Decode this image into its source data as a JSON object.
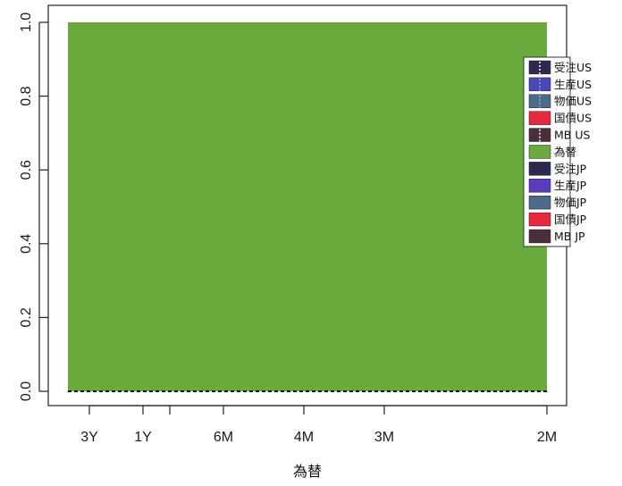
{
  "chart_data": {
    "type": "area",
    "xlabel": "為替",
    "ylabel": "",
    "title": "",
    "ylim": [
      0,
      1
    ],
    "y_ticks": [
      "0.0",
      "0.2",
      "0.4",
      "0.6",
      "0.8",
      "1.0"
    ],
    "x_tick_labels": [
      "3Y",
      "1Y",
      "6M",
      "4M",
      "3M",
      "2M"
    ],
    "stacked_proportion": true,
    "legend_position": "right",
    "series": [
      {
        "name": "受注US",
        "color": "#2e2a4f",
        "values": [
          0,
          0,
          0,
          0,
          0,
          0
        ]
      },
      {
        "name": "生産US",
        "color": "#4a48b8",
        "values": [
          0,
          0,
          0,
          0,
          0,
          0
        ]
      },
      {
        "name": "物価US",
        "color": "#4d6a8a",
        "values": [
          0,
          0,
          0,
          0,
          0,
          0
        ]
      },
      {
        "name": "国債US",
        "color": "#e8283c",
        "values": [
          0,
          0,
          0,
          0,
          0,
          0
        ]
      },
      {
        "name": "MB US",
        "color": "#4a2e3c",
        "values": [
          0,
          0,
          0,
          0,
          0,
          0
        ]
      },
      {
        "name": "為替",
        "color": "#6aaa3c",
        "values": [
          1,
          1,
          1,
          1,
          1,
          1
        ]
      },
      {
        "name": "受注JP",
        "color": "#2e2a4f",
        "values": [
          0,
          0,
          0,
          0,
          0,
          0
        ]
      },
      {
        "name": "生産JP",
        "color": "#5a3cc0",
        "values": [
          0,
          0,
          0,
          0,
          0,
          0
        ]
      },
      {
        "name": "物価JP",
        "color": "#4d6a8a",
        "values": [
          0,
          0,
          0,
          0,
          0,
          0
        ]
      },
      {
        "name": "国債JP",
        "color": "#e8283c",
        "values": [
          0,
          0,
          0,
          0,
          0,
          0
        ]
      },
      {
        "name": "MB JP",
        "color": "#4a2e3c",
        "values": [
          0,
          0,
          0,
          0,
          0,
          0
        ]
      }
    ]
  }
}
